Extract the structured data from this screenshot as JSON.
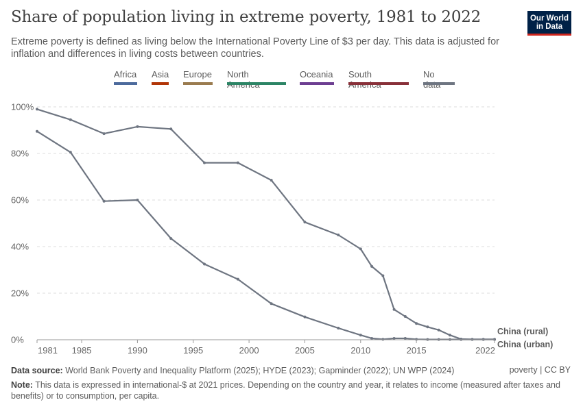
{
  "header": {
    "title": "Share of population living in extreme poverty, 1981 to 2022",
    "subtitle": "Extreme poverty is defined as living below the International Poverty Line of $3 per day. This data is adjusted for inflation and differences in living costs between countries.",
    "logo_line1": "Our World",
    "logo_line2": "in Data"
  },
  "legend": [
    {
      "label": "Africa",
      "color": "#4c6a9c"
    },
    {
      "label": "Asia",
      "color": "#b13507"
    },
    {
      "label": "Europe",
      "color": "#9a7b4f"
    },
    {
      "label": "North America",
      "color": "#2c8465"
    },
    {
      "label": "Oceania",
      "color": "#6d3e91"
    },
    {
      "label": "South America",
      "color": "#883039"
    },
    {
      "label": "No data",
      "color": "#6e7581"
    }
  ],
  "chart_data": {
    "type": "line",
    "xlim": [
      1981,
      2022
    ],
    "ylim": [
      0,
      100
    ],
    "x_ticks": [
      "1981",
      "1985",
      "1990",
      "1995",
      "2000",
      "2005",
      "2010",
      "2015",
      "2022"
    ],
    "y_ticks": [
      "0%",
      "20%",
      "40%",
      "60%",
      "80%",
      "100%"
    ],
    "grid": true,
    "series": [
      {
        "name": "China (rural)",
        "color": "#6e7581",
        "points": [
          [
            1981,
            99
          ],
          [
            1984,
            94.5
          ],
          [
            1987,
            88.5
          ],
          [
            1990,
            91.5
          ],
          [
            1993,
            90.5
          ],
          [
            1996,
            76
          ],
          [
            1999,
            76
          ],
          [
            2002,
            68.5
          ],
          [
            2005,
            50.5
          ],
          [
            2008,
            45
          ],
          [
            2010,
            39
          ],
          [
            2011,
            31.5
          ],
          [
            2012,
            27.5
          ],
          [
            2013,
            13
          ],
          [
            2014,
            10
          ],
          [
            2015,
            7
          ],
          [
            2016,
            5.5
          ],
          [
            2017,
            4.2
          ],
          [
            2018,
            2
          ],
          [
            2019,
            0.3
          ],
          [
            2020,
            0.2
          ],
          [
            2021,
            0.2
          ],
          [
            2022,
            0.2
          ]
        ]
      },
      {
        "name": "China (urban)",
        "color": "#6e7581",
        "points": [
          [
            1981,
            89.5
          ],
          [
            1984,
            80.5
          ],
          [
            1987,
            59.5
          ],
          [
            1990,
            60
          ],
          [
            1993,
            43.5
          ],
          [
            1996,
            32.5
          ],
          [
            1999,
            26
          ],
          [
            2002,
            15.5
          ],
          [
            2005,
            9.8
          ],
          [
            2008,
            5
          ],
          [
            2010,
            2
          ],
          [
            2011,
            0.6
          ],
          [
            2012,
            0.2
          ],
          [
            2013,
            0.6
          ],
          [
            2014,
            0.6
          ],
          [
            2015,
            0.2
          ],
          [
            2016,
            0.1
          ],
          [
            2017,
            0.1
          ],
          [
            2018,
            0.1
          ],
          [
            2019,
            0.1
          ],
          [
            2020,
            0.1
          ],
          [
            2021,
            0.1
          ],
          [
            2022,
            0.1
          ]
        ]
      }
    ]
  },
  "footer": {
    "source_label": "Data source:",
    "source_text": "World Bank Poverty and Inequality Platform (2025); HYDE (2023); Gapminder (2022); UN WPP (2024)",
    "note_label": "Note:",
    "note_text": "This data is expressed in international-$ at 2021 prices. Depending on the country and year, it relates to income (measured after taxes and benefits) or to consumption, per capita.",
    "license": "poverty | CC BY"
  }
}
